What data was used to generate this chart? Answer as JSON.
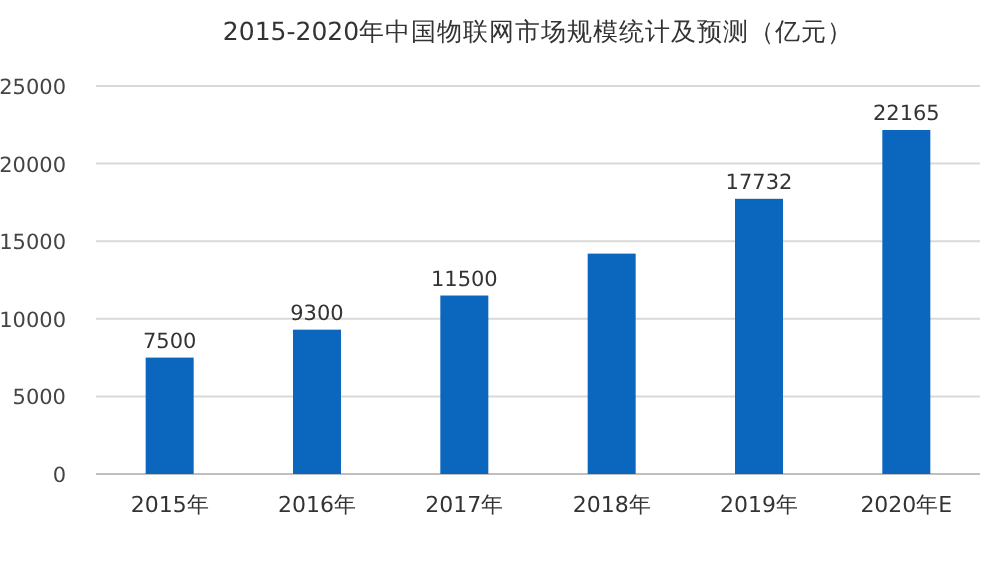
{
  "chart_data": {
    "type": "bar",
    "title": "2015-2020年中国物联网市场规模统计及预测（亿元）",
    "categories": [
      "2015年",
      "2016年",
      "2017年",
      "2018年",
      "2019年",
      "2020年E"
    ],
    "values": [
      7500,
      9300,
      11500,
      14200,
      17732,
      22165
    ],
    "value_labels": [
      "7500",
      "9300",
      "11500",
      null,
      "17732",
      "22165"
    ],
    "color": "#0b66bd",
    "ylim": [
      0,
      25000
    ],
    "yticks": [
      0,
      5000,
      10000,
      15000,
      20000,
      25000
    ],
    "grid": "y"
  }
}
